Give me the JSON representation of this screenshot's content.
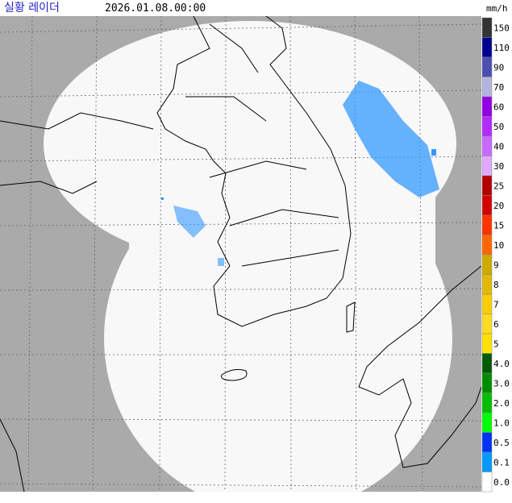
{
  "header": {
    "title": "실황 레이더",
    "datetime": "2026.01.08.00:00",
    "unit": "mm/h"
  },
  "legend": {
    "items": [
      {
        "label": "150",
        "color": "#333333"
      },
      {
        "label": "110",
        "color": "#000390"
      },
      {
        "label": "90",
        "color": "#4c4eb1"
      },
      {
        "label": "70",
        "color": "#b3b4de"
      },
      {
        "label": "60",
        "color": "#9300e4"
      },
      {
        "label": "50",
        "color": "#b329ff"
      },
      {
        "label": "40",
        "color": "#c969ff"
      },
      {
        "label": "30",
        "color": "#e0a9ff"
      },
      {
        "label": "25",
        "color": "#b40000"
      },
      {
        "label": "20",
        "color": "#d20000"
      },
      {
        "label": "15",
        "color": "#ff3200"
      },
      {
        "label": "10",
        "color": "#ff6600"
      },
      {
        "label": "9",
        "color": "#ccaa00"
      },
      {
        "label": "8",
        "color": "#e0b900"
      },
      {
        "label": "7",
        "color": "#f9cd00"
      },
      {
        "label": "6",
        "color": "#ffdc1f"
      },
      {
        "label": "5",
        "color": "#ffe100"
      },
      {
        "label": "4.0",
        "color": "#005a00"
      },
      {
        "label": "3.0",
        "color": "#008c00"
      },
      {
        "label": "2.0",
        "color": "#00be00"
      },
      {
        "label": "1.0",
        "color": "#00ff00"
      },
      {
        "label": "0.5",
        "color": "#0033f5"
      },
      {
        "label": "0.1",
        "color": "#0099ff"
      },
      {
        "label": "0.0",
        "color": "#ffffff"
      }
    ]
  }
}
